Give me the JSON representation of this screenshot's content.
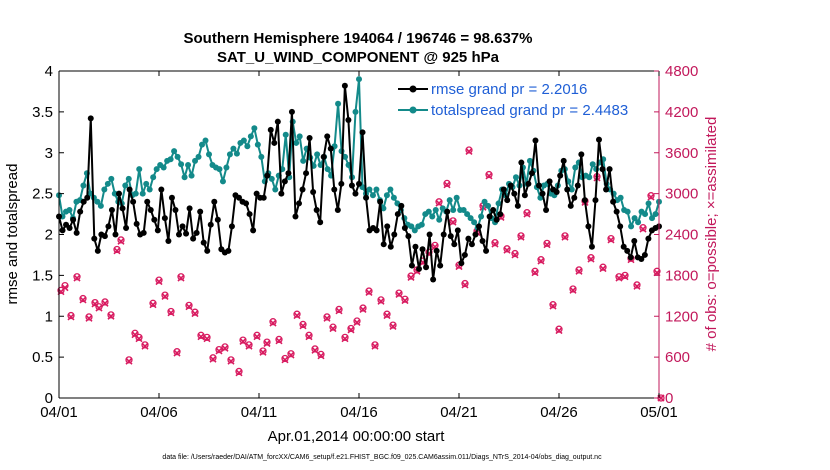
{
  "chart_data": {
    "type": "line",
    "title": "Southern Hemisphere 194064 / 196746 = 98.637%",
    "subtitle": "SAT_U_WIND_COMPONENT @ 925 hPa",
    "xlabel": "Apr.01,2014 00:00:00 start",
    "ylabel_left": "rmse and totalspread",
    "ylabel_right": "# of obs: o=possible; ×=assimilated",
    "footnote": "data file: /Users/raeder/DAI/ATM_forcXX/CAM6_setup/f.e21.FHIST_BGC.f09_025.CAM6assim.011/Diags_NTrS_2014-04/obs_diag_output.nc",
    "x_range": [
      0,
      30
    ],
    "x_ticks": [
      0,
      5,
      10,
      15,
      20,
      25,
      30
    ],
    "x_tick_labels": [
      "04/01",
      "04/06",
      "04/11",
      "04/16",
      "04/21",
      "04/26",
      "05/01"
    ],
    "ylim_left": [
      0,
      4
    ],
    "y_ticks_left": [
      "0",
      "0.5",
      "1",
      "1.5",
      "2",
      "2.5",
      "3",
      "3.5",
      "4"
    ],
    "ylim_right": [
      0,
      4800
    ],
    "y_ticks_right": [
      "0",
      "600",
      "1200",
      "1800",
      "2400",
      "3000",
      "3600",
      "4200",
      "4800"
    ],
    "colors": {
      "rmse": "#000000",
      "spread": "#138a8a",
      "obs": "#d81b60",
      "right_axis": "#c2185b",
      "legend_text": "#1f5fd6"
    },
    "series": [
      {
        "name": "rmse grand pr = 2.2016",
        "axis": "left",
        "values": [
          2.22,
          2.05,
          2.12,
          2.08,
          2.18,
          2.02,
          2.28,
          2.4,
          2.45,
          3.42,
          1.95,
          1.8,
          2.0,
          1.98,
          2.1,
          2.3,
          2.0,
          2.5,
          2.32,
          2.08,
          2.55,
          2.4,
          2.13,
          2.0,
          2.02,
          2.4,
          2.3,
          2.18,
          2.05,
          2.55,
          2.2,
          1.92,
          2.45,
          2.3,
          2.0,
          2.1,
          2.01,
          2.32,
          1.95,
          2.02,
          2.28,
          1.9,
          1.8,
          2.12,
          2.4,
          2.18,
          1.82,
          1.78,
          1.8,
          2.1,
          2.48,
          2.45,
          2.4,
          2.38,
          2.25,
          2.05,
          2.5,
          2.45,
          2.45,
          2.72,
          3.28,
          3.12,
          3.38,
          2.5,
          2.65,
          2.75,
          3.5,
          2.22,
          2.38,
          2.55,
          2.75,
          3.18,
          2.52,
          2.3,
          2.15,
          2.95,
          3.2,
          3.05,
          2.55,
          2.3,
          2.62,
          3.82,
          3.4,
          2.6,
          2.5,
          2.62,
          3.25,
          2.45,
          2.05,
          2.08,
          2.05,
          2.4,
          1.88,
          2.1,
          1.85,
          2.0,
          2.25,
          2.35,
          2.08,
          1.98,
          1.62,
          1.85,
          1.58,
          1.82,
          1.6,
          2.0,
          1.45,
          1.8,
          1.62,
          2.0,
          2.28,
          1.98,
          1.88,
          2.05,
          1.65,
          1.75,
          1.95,
          1.88,
          2.0,
          2.1,
          1.92,
          1.8,
          2.22,
          2.3,
          2.18,
          2.25,
          2.55,
          2.42,
          2.6,
          2.5,
          2.35,
          2.88,
          2.48,
          2.62,
          2.75,
          3.15,
          2.6,
          2.5,
          2.3,
          2.65,
          2.55,
          2.52,
          2.72,
          2.9,
          2.55,
          2.35,
          2.45,
          2.6,
          2.98,
          2.42,
          2.1,
          1.85,
          2.42,
          3.16,
          2.8,
          2.55,
          2.8,
          2.4,
          2.28,
          2.1,
          1.85,
          1.8,
          1.72,
          1.92,
          1.72,
          1.7,
          1.75,
          1.95,
          2.05,
          2.08,
          2.1
        ]
      },
      {
        "name": "totalspread grand pr = 2.4483",
        "axis": "left",
        "values": [
          2.48,
          2.22,
          2.28,
          2.3,
          2.2,
          2.4,
          2.42,
          2.6,
          2.75,
          2.5,
          2.45,
          2.4,
          2.35,
          2.55,
          2.62,
          2.68,
          2.5,
          2.4,
          2.38,
          2.6,
          2.68,
          2.48,
          2.5,
          2.8,
          2.5,
          2.62,
          2.55,
          2.7,
          2.8,
          2.85,
          2.82,
          2.9,
          2.92,
          3.02,
          2.95,
          2.86,
          2.7,
          2.85,
          2.72,
          2.9,
          2.95,
          3.1,
          3.15,
          2.98,
          2.85,
          2.82,
          2.8,
          2.65,
          2.82,
          2.98,
          3.05,
          2.99,
          3.12,
          3.15,
          3.08,
          3.2,
          3.3,
          3.1,
          2.95,
          2.65,
          2.75,
          2.68,
          2.55,
          2.72,
          2.8,
          3.22,
          2.7,
          3.38,
          3.12,
          3.2,
          2.9,
          3.05,
          2.94,
          2.84,
          2.98,
          2.85,
          2.95,
          2.8,
          2.72,
          3.08,
          3.6,
          3.02,
          2.95,
          2.85,
          2.7,
          3.5,
          3.9,
          2.58,
          2.5,
          2.55,
          2.48,
          2.55,
          2.42,
          2.32,
          2.48,
          2.55,
          2.45,
          2.38,
          2.3,
          2.2,
          2.12,
          2.1,
          2.05,
          2.1,
          2.12,
          2.25,
          2.28,
          2.22,
          2.3,
          2.18,
          2.32,
          2.28,
          2.42,
          2.3,
          2.45,
          2.3,
          2.3,
          2.25,
          2.2,
          2.15,
          2.08,
          2.22,
          2.4,
          2.35,
          2.2,
          2.15,
          2.38,
          2.55,
          2.48,
          2.62,
          2.58,
          2.7,
          2.6,
          2.82,
          2.62,
          2.9,
          2.78,
          2.58,
          2.45,
          2.6,
          2.62,
          2.5,
          2.48,
          2.6,
          2.78,
          2.8,
          2.65,
          2.55,
          2.82,
          2.88,
          2.7,
          2.72,
          2.7,
          2.86,
          2.8,
          2.88,
          2.92,
          2.62,
          2.55,
          2.5,
          2.42,
          2.45,
          2.3,
          2.28,
          2.1,
          2.2,
          2.15,
          2.28,
          2.25,
          2.38,
          2.2,
          2.25,
          2.4
        ]
      },
      {
        "name": "obs possible",
        "axis": "right",
        "points": [
          [
            0.1,
            1580
          ],
          [
            0.3,
            1650
          ],
          [
            0.6,
            1210
          ],
          [
            0.9,
            1780
          ],
          [
            1.2,
            1460
          ],
          [
            1.5,
            1190
          ],
          [
            1.8,
            1400
          ],
          [
            2.0,
            1340
          ],
          [
            2.3,
            1410
          ],
          [
            2.6,
            1220
          ],
          [
            2.9,
            2180
          ],
          [
            3.1,
            2320
          ],
          [
            3.5,
            560
          ],
          [
            3.8,
            950
          ],
          [
            4.0,
            890
          ],
          [
            4.3,
            780
          ],
          [
            4.7,
            1390
          ],
          [
            5.0,
            1730
          ],
          [
            5.3,
            1510
          ],
          [
            5.6,
            1270
          ],
          [
            5.9,
            680
          ],
          [
            6.1,
            1780
          ],
          [
            6.5,
            1360
          ],
          [
            6.8,
            1260
          ],
          [
            7.1,
            920
          ],
          [
            7.4,
            890
          ],
          [
            7.7,
            590
          ],
          [
            8.0,
            710
          ],
          [
            8.3,
            750
          ],
          [
            8.6,
            560
          ],
          [
            9.0,
            390
          ],
          [
            9.2,
            850
          ],
          [
            9.5,
            780
          ],
          [
            9.9,
            920
          ],
          [
            10.2,
            690
          ],
          [
            10.4,
            820
          ],
          [
            10.7,
            1120
          ],
          [
            11.0,
            860
          ],
          [
            11.3,
            580
          ],
          [
            11.6,
            650
          ],
          [
            11.9,
            1230
          ],
          [
            12.2,
            1080
          ],
          [
            12.5,
            920
          ],
          [
            12.8,
            720
          ],
          [
            13.1,
            640
          ],
          [
            13.4,
            1190
          ],
          [
            13.7,
            1040
          ],
          [
            14.0,
            1300
          ],
          [
            14.3,
            890
          ],
          [
            14.6,
            1020
          ],
          [
            14.9,
            1130
          ],
          [
            15.2,
            1320
          ],
          [
            15.5,
            1570
          ],
          [
            15.8,
            780
          ],
          [
            16.1,
            1440
          ],
          [
            16.4,
            1230
          ],
          [
            16.7,
            1070
          ],
          [
            17.0,
            1540
          ],
          [
            17.3,
            1450
          ],
          [
            17.6,
            1790
          ],
          [
            17.9,
            1880
          ],
          [
            18.2,
            2010
          ],
          [
            18.5,
            2140
          ],
          [
            18.8,
            2240
          ],
          [
            19.0,
            2880
          ],
          [
            19.4,
            3150
          ],
          [
            19.7,
            2600
          ],
          [
            20.0,
            1950
          ],
          [
            20.3,
            1680
          ],
          [
            20.5,
            3640
          ],
          [
            20.9,
            2450
          ],
          [
            21.2,
            2820
          ],
          [
            21.5,
            3280
          ],
          [
            21.8,
            2280
          ],
          [
            22.1,
            2670
          ],
          [
            22.4,
            2190
          ],
          [
            22.8,
            2120
          ],
          [
            23.1,
            2380
          ],
          [
            23.4,
            2720
          ],
          [
            23.8,
            1860
          ],
          [
            24.1,
            2030
          ],
          [
            24.4,
            2270
          ],
          [
            24.7,
            1370
          ],
          [
            25.0,
            1010
          ],
          [
            25.3,
            2380
          ],
          [
            25.7,
            1600
          ],
          [
            26.0,
            1880
          ],
          [
            26.3,
            2890
          ],
          [
            26.6,
            2060
          ],
          [
            26.9,
            3250
          ],
          [
            27.2,
            1920
          ],
          [
            27.6,
            2340
          ],
          [
            28.0,
            1780
          ],
          [
            28.3,
            1800
          ],
          [
            28.6,
            2050
          ],
          [
            28.9,
            1660
          ],
          [
            29.2,
            2500
          ],
          [
            29.6,
            2970
          ],
          [
            29.9,
            1860
          ],
          [
            30.1,
            0
          ]
        ]
      },
      {
        "name": "obs assimilated",
        "axis": "right",
        "points": [
          [
            0.1,
            1560
          ],
          [
            0.3,
            1620
          ],
          [
            0.6,
            1190
          ],
          [
            0.9,
            1760
          ],
          [
            1.2,
            1440
          ],
          [
            1.5,
            1170
          ],
          [
            1.8,
            1380
          ],
          [
            2.0,
            1320
          ],
          [
            2.3,
            1390
          ],
          [
            2.6,
            1200
          ],
          [
            2.9,
            2160
          ],
          [
            3.1,
            2300
          ],
          [
            3.5,
            540
          ],
          [
            3.8,
            930
          ],
          [
            4.0,
            870
          ],
          [
            4.3,
            760
          ],
          [
            4.7,
            1370
          ],
          [
            5.0,
            1710
          ],
          [
            5.3,
            1490
          ],
          [
            5.6,
            1250
          ],
          [
            5.9,
            660
          ],
          [
            6.1,
            1760
          ],
          [
            6.5,
            1340
          ],
          [
            6.8,
            1240
          ],
          [
            7.1,
            900
          ],
          [
            7.4,
            870
          ],
          [
            7.7,
            570
          ],
          [
            8.0,
            690
          ],
          [
            8.3,
            730
          ],
          [
            8.6,
            540
          ],
          [
            9.0,
            370
          ],
          [
            9.2,
            830
          ],
          [
            9.5,
            760
          ],
          [
            9.9,
            900
          ],
          [
            10.2,
            670
          ],
          [
            10.4,
            800
          ],
          [
            10.7,
            1100
          ],
          [
            11.0,
            840
          ],
          [
            11.3,
            560
          ],
          [
            11.6,
            630
          ],
          [
            11.9,
            1210
          ],
          [
            12.2,
            1060
          ],
          [
            12.5,
            900
          ],
          [
            12.8,
            700
          ],
          [
            13.1,
            620
          ],
          [
            13.4,
            1170
          ],
          [
            13.7,
            1020
          ],
          [
            14.0,
            1280
          ],
          [
            14.3,
            870
          ],
          [
            14.6,
            1000
          ],
          [
            14.9,
            1110
          ],
          [
            15.2,
            1300
          ],
          [
            15.5,
            1550
          ],
          [
            15.8,
            760
          ],
          [
            16.1,
            1420
          ],
          [
            16.4,
            1210
          ],
          [
            16.7,
            1050
          ],
          [
            17.0,
            1520
          ],
          [
            17.3,
            1430
          ],
          [
            17.6,
            1770
          ],
          [
            17.9,
            1860
          ],
          [
            18.2,
            1990
          ],
          [
            18.5,
            2120
          ],
          [
            18.8,
            2220
          ],
          [
            19.0,
            2860
          ],
          [
            19.4,
            3130
          ],
          [
            19.7,
            2580
          ],
          [
            20.0,
            1930
          ],
          [
            20.3,
            1660
          ],
          [
            20.5,
            3620
          ],
          [
            20.9,
            2430
          ],
          [
            21.2,
            2800
          ],
          [
            21.5,
            3260
          ],
          [
            21.8,
            2260
          ],
          [
            22.1,
            2650
          ],
          [
            22.4,
            2170
          ],
          [
            22.8,
            2100
          ],
          [
            23.1,
            2360
          ],
          [
            23.4,
            2700
          ],
          [
            23.8,
            1840
          ],
          [
            24.1,
            2010
          ],
          [
            24.4,
            2250
          ],
          [
            24.7,
            1350
          ],
          [
            25.0,
            990
          ],
          [
            25.3,
            2360
          ],
          [
            25.7,
            1580
          ],
          [
            26.0,
            1860
          ],
          [
            26.3,
            2870
          ],
          [
            26.6,
            2040
          ],
          [
            26.9,
            3230
          ],
          [
            27.2,
            1900
          ],
          [
            27.6,
            2320
          ],
          [
            28.0,
            1760
          ],
          [
            28.3,
            1780
          ],
          [
            28.6,
            2030
          ],
          [
            28.9,
            1640
          ],
          [
            29.2,
            2480
          ],
          [
            29.6,
            2950
          ],
          [
            29.9,
            1840
          ],
          [
            30.1,
            0
          ]
        ]
      }
    ]
  }
}
